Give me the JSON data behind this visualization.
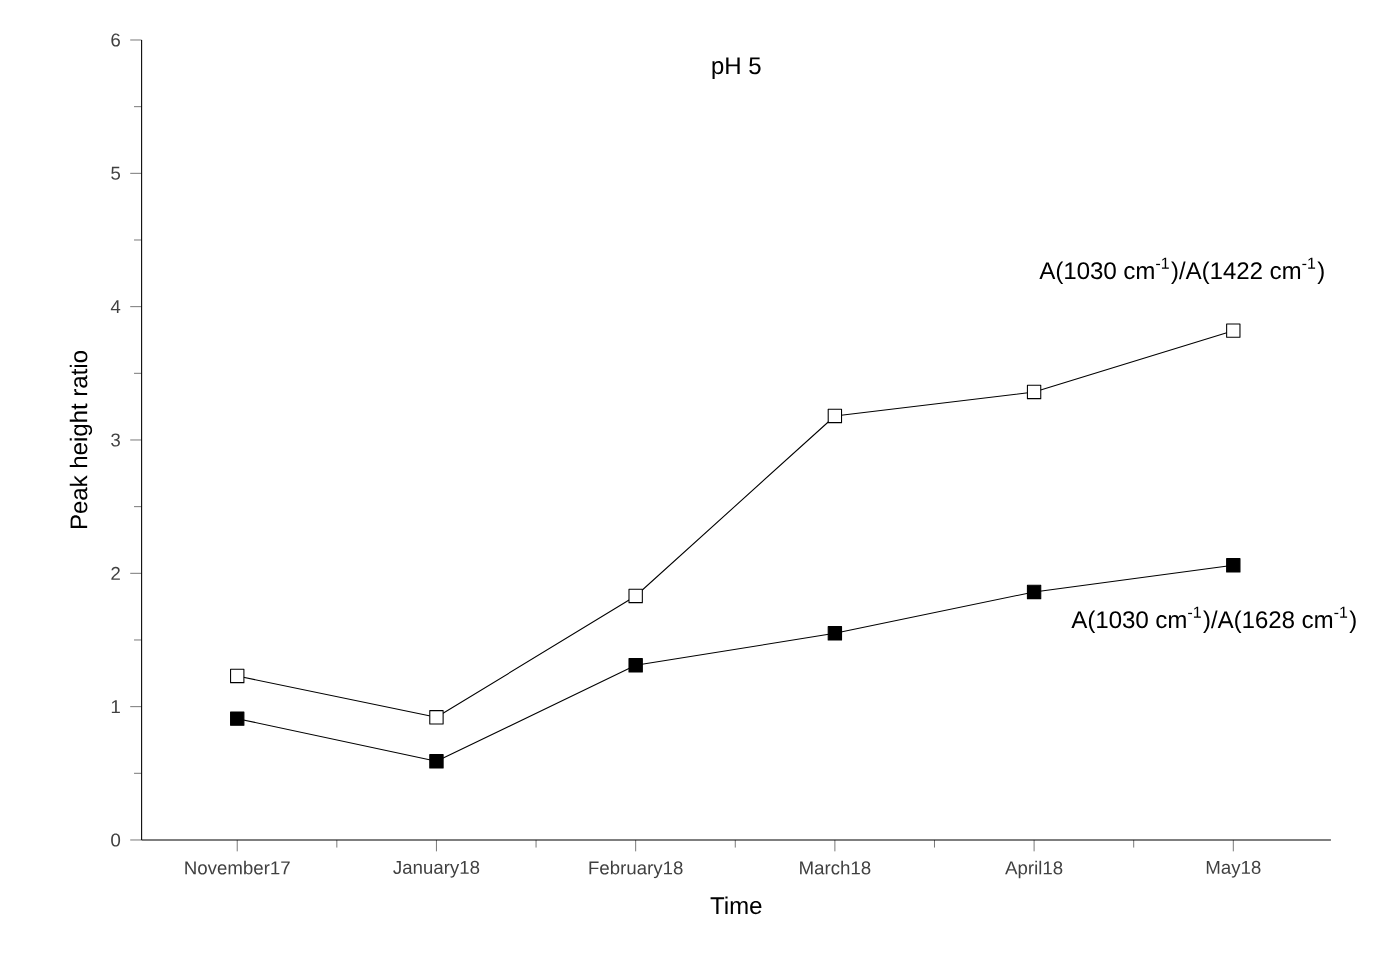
{
  "chart_data": {
    "type": "line",
    "title": "pH 5",
    "xlabel": "Time",
    "ylabel": "Peak height ratio",
    "categories": [
      "November17",
      "January18",
      "February18",
      "March18",
      "April18",
      "May18"
    ],
    "series": [
      {
        "name": "A(1030 cm$^{-1}$)/A(1422 cm$^{-1}$)",
        "color": "#000000",
        "values": [
          1.23,
          0.92,
          1.83,
          3.18,
          3.36,
          3.82
        ]
      },
      {
        "name": "A(1030 cm$^{-1}$)/A(1628 cm$^{-1}$)",
        "color": "#000000",
        "values": [
          0.91,
          0.59,
          1.31,
          1.55,
          1.86,
          2.06
        ]
      }
    ],
    "ylim": [
      0,
      6
    ],
    "yticks": [
      0,
      1,
      2,
      3,
      4,
      5,
      6
    ],
    "grid": false,
    "legend": false,
    "marker": "square",
    "line_style": "solid"
  }
}
